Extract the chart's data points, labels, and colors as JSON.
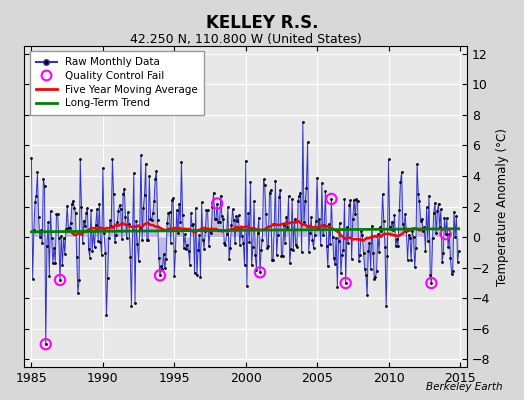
{
  "title": "KELLEY R.S.",
  "subtitle": "42.250 N, 110.800 W (United States)",
  "ylabel": "Temperature Anomaly (°C)",
  "watermark": "Berkeley Earth",
  "xlim": [
    1984.5,
    2015.5
  ],
  "ylim": [
    -8.5,
    12.5
  ],
  "yticks": [
    -8,
    -6,
    -4,
    -2,
    0,
    2,
    4,
    6,
    8,
    10,
    12
  ],
  "xticks": [
    1985,
    1990,
    1995,
    2000,
    2005,
    2010,
    2015
  ],
  "bg_color": "#d8d8d8",
  "plot_bg_color": "#e8e8e8",
  "grid_color": "white",
  "raw_color": "#3333cc",
  "raw_fill_color": "#8888dd",
  "dot_color": "black",
  "qc_color": "#ff00ff",
  "mavg_color": "red",
  "trend_color": "green",
  "start_year": 1985,
  "end_year": 2014,
  "seed": 17,
  "legend_loc": "upper left"
}
